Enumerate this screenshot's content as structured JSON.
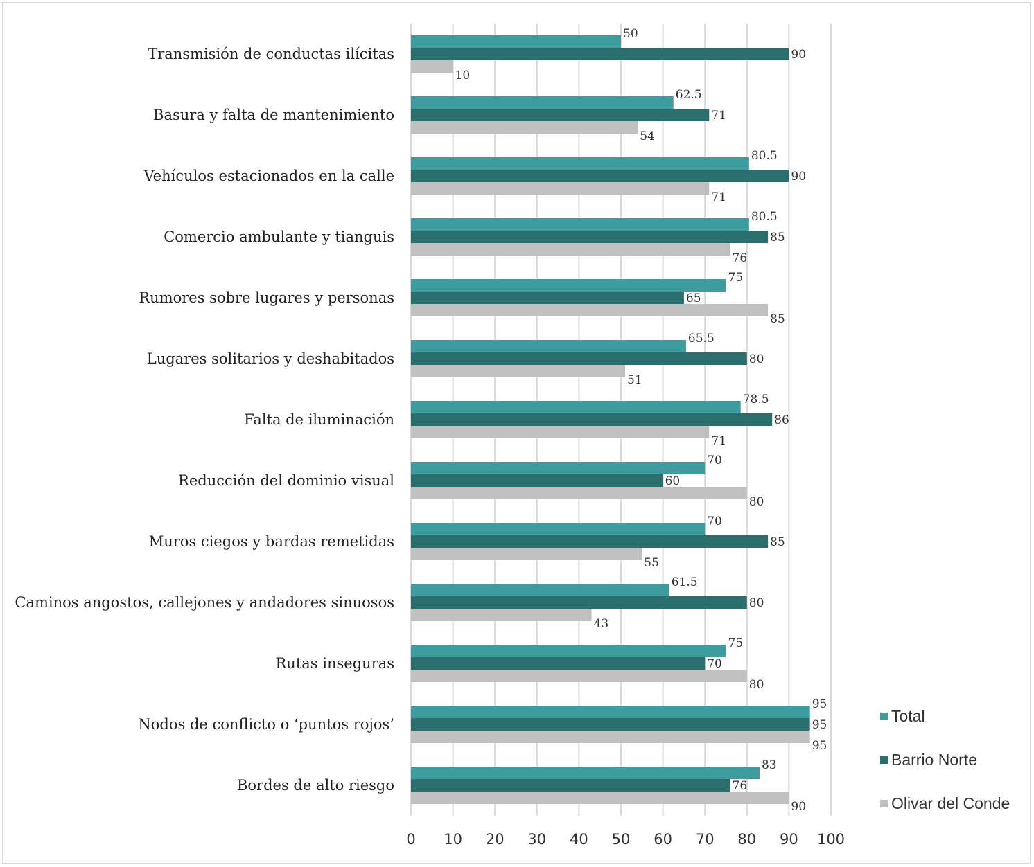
{
  "chart_data": {
    "type": "bar",
    "orientation": "horizontal",
    "categories": [
      "Transmisión de conductas ilícitas",
      "Basura y falta de mantenimiento",
      "Vehículos estacionados en la calle",
      "Comercio ambulante y tianguis",
      "Rumores sobre lugares y personas",
      "Lugares solitarios y deshabitados",
      "Falta de iluminación",
      "Reducción del dominio visual",
      "Muros ciegos y bardas remetidas",
      "Caminos angostos, callejones y andadores sinuosos",
      "Rutas inseguras",
      "Nodos de conflicto o ‘puntos rojos’",
      "Bordes de alto riesgo"
    ],
    "series": [
      {
        "name": "Total",
        "color": "#3e9c9e",
        "values": [
          50,
          62.5,
          80.5,
          80.5,
          75,
          65.5,
          78.5,
          70,
          70,
          61.5,
          75,
          95,
          83
        ]
      },
      {
        "name": "Barrio Norte",
        "color": "#2b6e6e",
        "values": [
          90,
          71,
          90,
          85,
          65,
          80,
          86,
          60,
          85,
          80,
          70,
          95,
          76
        ]
      },
      {
        "name": "Olivar del Conde",
        "color": "#c0c0c0",
        "values": [
          10,
          54,
          71,
          76,
          85,
          51,
          71,
          80,
          55,
          43,
          80,
          95,
          90
        ]
      }
    ],
    "xlim": [
      0,
      100
    ],
    "xticks": [
      "0",
      "10",
      "20",
      "30",
      "40",
      "50",
      "60",
      "70",
      "80",
      "90",
      "100"
    ],
    "grid": true,
    "legend_position": "right-bottom",
    "data_labels": true
  }
}
